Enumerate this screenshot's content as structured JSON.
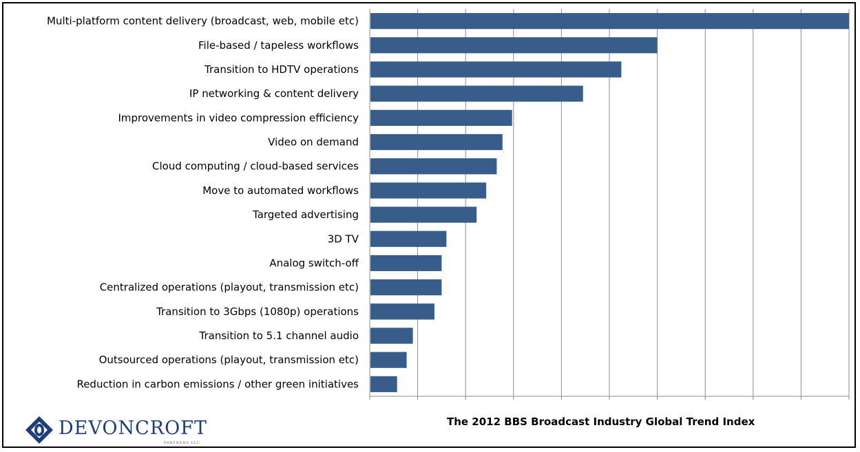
{
  "chart_data": {
    "type": "bar",
    "orientation": "horizontal",
    "title": "The 2012 BBS Broadcast Industry Global Trend Index",
    "categories": [
      "Multi-platform content delivery (broadcast, web, mobile etc)",
      "File-based  / tapeless workflows",
      "Transition to HDTV operations",
      "IP networking & content delivery",
      "Improvements in video compression efficiency",
      "Video on demand",
      "Cloud computing / cloud-based services",
      "Move to automated workflows",
      "Targeted advertising",
      "3D TV",
      "Analog switch-off",
      "Centralized operations (playout, transmission etc)",
      "Transition to 3Gbps (1080p)  operations",
      "Transition to 5.1 channel audio",
      "Outsourced operations (playout, transmission etc)",
      "Reduction in carbon emissions / other green initiatives"
    ],
    "values": [
      100,
      60,
      52.5,
      44.5,
      29.7,
      27.7,
      26.5,
      24.3,
      22.3,
      16,
      15,
      15,
      13.5,
      9,
      7.7,
      5.7
    ],
    "xlim": [
      0,
      100
    ],
    "x_gridlines": 10,
    "ticks_labeled": false,
    "grid": true,
    "legend": "none",
    "bar_color": "#385d8a",
    "grid_color": "#8c8c8c"
  },
  "logo": {
    "name": "DEVONCROFT",
    "sub": "PARTNERS LLC",
    "color": "#1f3d7a"
  }
}
